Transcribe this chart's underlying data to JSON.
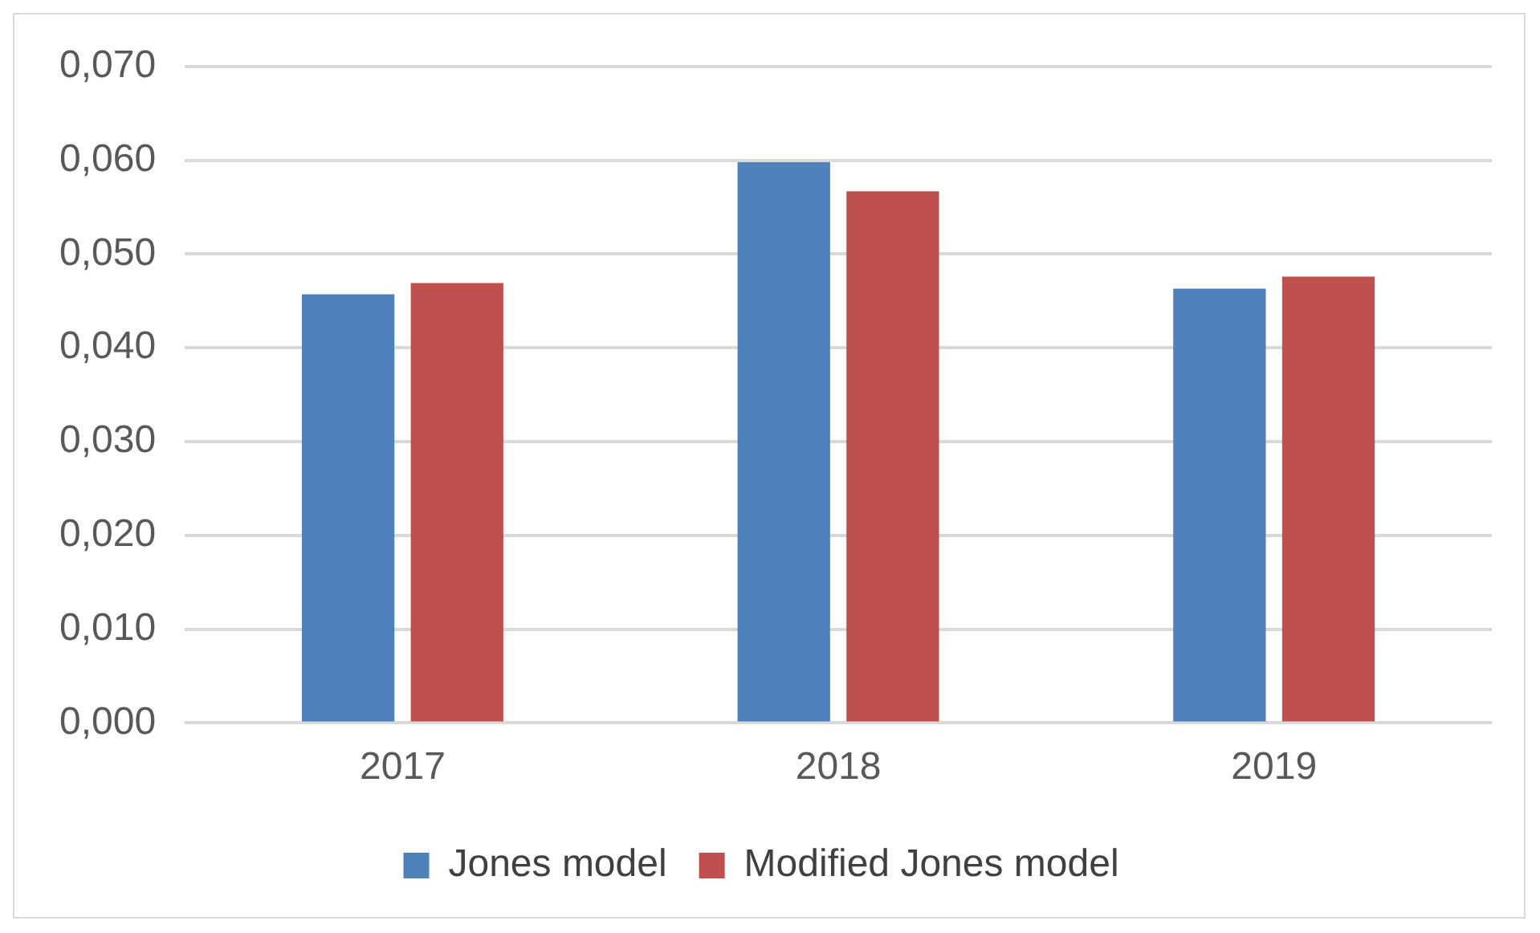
{
  "chart_data": {
    "type": "bar",
    "categories": [
      "2017",
      "2018",
      "2019"
    ],
    "series": [
      {
        "name": "Jones model",
        "color": "#4f81bd",
        "values": [
          0.0457,
          0.0598,
          0.0463
        ]
      },
      {
        "name": "Modified Jones model",
        "color": "#c0504d",
        "values": [
          0.0469,
          0.0567,
          0.0476
        ]
      }
    ],
    "ylim": [
      0,
      0.07
    ],
    "yticks": [
      {
        "value": 0,
        "label": "0,000"
      },
      {
        "value": 0.01,
        "label": "0,010"
      },
      {
        "value": 0.02,
        "label": "0,020"
      },
      {
        "value": 0.03,
        "label": "0,030"
      },
      {
        "value": 0.04,
        "label": "0,040"
      },
      {
        "value": 0.05,
        "label": "0,050"
      },
      {
        "value": 0.06,
        "label": "0,060"
      },
      {
        "value": 0.07,
        "label": "0,070"
      }
    ],
    "grid": "y",
    "legend": "bottom"
  }
}
